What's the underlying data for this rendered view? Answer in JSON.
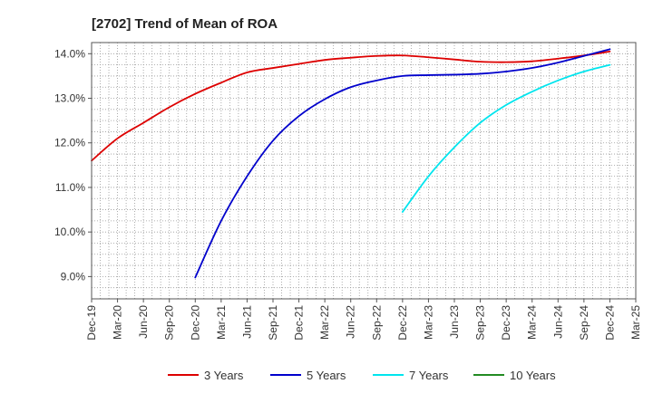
{
  "chart_data": {
    "type": "line",
    "title": "[2702]  Trend of Mean of ROA",
    "xlabel": "",
    "ylabel": "",
    "x_ticks": [
      "Dec-19",
      "Mar-20",
      "Jun-20",
      "Sep-20",
      "Dec-20",
      "Mar-21",
      "Jun-21",
      "Sep-21",
      "Dec-21",
      "Mar-22",
      "Jun-22",
      "Sep-22",
      "Dec-22",
      "Mar-23",
      "Jun-23",
      "Sep-23",
      "Dec-23",
      "Mar-24",
      "Jun-24",
      "Sep-24",
      "Dec-24",
      "Mar-25"
    ],
    "y_ticks": [
      "9.0%",
      "10.0%",
      "11.0%",
      "12.0%",
      "13.0%",
      "14.0%"
    ],
    "y_tick_values": [
      9.0,
      10.0,
      11.0,
      12.0,
      13.0,
      14.0
    ],
    "ylim": [
      8.5,
      14.25
    ],
    "grid": true,
    "legend_position": "bottom",
    "series": [
      {
        "name": "3 Years",
        "color": "#dd0000",
        "x": [
          "Dec-19",
          "Mar-20",
          "Jun-20",
          "Sep-20",
          "Dec-20",
          "Mar-21",
          "Jun-21",
          "Sep-21",
          "Dec-21",
          "Mar-22",
          "Jun-22",
          "Sep-22",
          "Dec-22",
          "Mar-23",
          "Jun-23",
          "Sep-23",
          "Dec-23",
          "Mar-24",
          "Jun-24",
          "Sep-24",
          "Dec-24"
        ],
        "values": [
          11.6,
          12.1,
          12.45,
          12.8,
          13.1,
          13.35,
          13.58,
          13.68,
          13.77,
          13.86,
          13.91,
          13.95,
          13.96,
          13.92,
          13.87,
          13.82,
          13.81,
          13.83,
          13.89,
          13.96,
          14.05
        ]
      },
      {
        "name": "5 Years",
        "color": "#0000cc",
        "x": [
          "Dec-20",
          "Mar-21",
          "Jun-21",
          "Sep-21",
          "Dec-21",
          "Mar-22",
          "Jun-22",
          "Sep-22",
          "Dec-22",
          "Mar-23",
          "Jun-23",
          "Sep-23",
          "Dec-23",
          "Mar-24",
          "Jun-24",
          "Sep-24",
          "Dec-24"
        ],
        "values": [
          8.98,
          10.25,
          11.25,
          12.05,
          12.6,
          12.98,
          13.25,
          13.4,
          13.5,
          13.52,
          13.53,
          13.55,
          13.6,
          13.68,
          13.8,
          13.95,
          14.1
        ]
      },
      {
        "name": "7 Years",
        "color": "#00e5ee",
        "x": [
          "Dec-22",
          "Mar-23",
          "Jun-23",
          "Sep-23",
          "Dec-23",
          "Mar-24",
          "Jun-24",
          "Sep-24",
          "Dec-24"
        ],
        "values": [
          10.45,
          11.25,
          11.9,
          12.45,
          12.85,
          13.15,
          13.4,
          13.6,
          13.75
        ]
      },
      {
        "name": "10 Years",
        "color": "#228b22",
        "x": [],
        "values": []
      }
    ]
  }
}
